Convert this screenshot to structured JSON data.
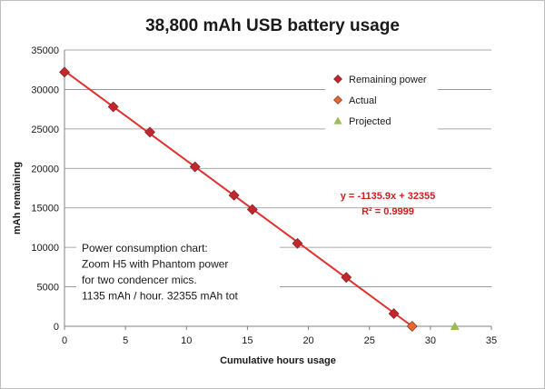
{
  "chart_data": {
    "type": "scatter",
    "title": "38,800 mAh USB battery usage",
    "xlabel": "Cumulative hours usage",
    "ylabel": "mAh remaining",
    "xlim": [
      0,
      35
    ],
    "ylim": [
      0,
      35000
    ],
    "x_ticks": [
      "0",
      "5",
      "10",
      "15",
      "20",
      "25",
      "30",
      "35"
    ],
    "y_ticks": [
      "0",
      "5000",
      "10000",
      "15000",
      "20000",
      "25000",
      "30000",
      "35000"
    ],
    "grid": "horizontal",
    "legend_position": "top-right",
    "series": [
      {
        "name": "Remaining power",
        "color": "#c0282d",
        "marker": "diamond",
        "points": [
          {
            "x": 0,
            "y": 32200
          },
          {
            "x": 4,
            "y": 27800
          },
          {
            "x": 7,
            "y": 24600
          },
          {
            "x": 10.7,
            "y": 20200
          },
          {
            "x": 13.9,
            "y": 16600
          },
          {
            "x": 15.4,
            "y": 14800
          },
          {
            "x": 19.1,
            "y": 10500
          },
          {
            "x": 23.1,
            "y": 6200
          },
          {
            "x": 27,
            "y": 1600
          }
        ]
      },
      {
        "name": "Actual",
        "color": "#e46c2a",
        "marker": "diamond",
        "points": [
          {
            "x": 28.5,
            "y": 0
          }
        ]
      },
      {
        "name": "Projected",
        "color": "#9bbb59",
        "marker": "triangle",
        "points": [
          {
            "x": 32,
            "y": 0
          }
        ]
      }
    ],
    "trendline": {
      "slope": -1135.9,
      "intercept": 32355,
      "x_range": [
        0,
        28.5
      ],
      "color": "#e03030",
      "equation": "y = -1135.9x + 32355",
      "r_squared": "R² = 0.9999"
    },
    "annotation_lines": [
      "Power consumption chart:",
      "Zoom H5 with Phantom power",
      "for two condencer mics.",
      "1135  mAh / hour. 32355  mAh tot"
    ]
  }
}
